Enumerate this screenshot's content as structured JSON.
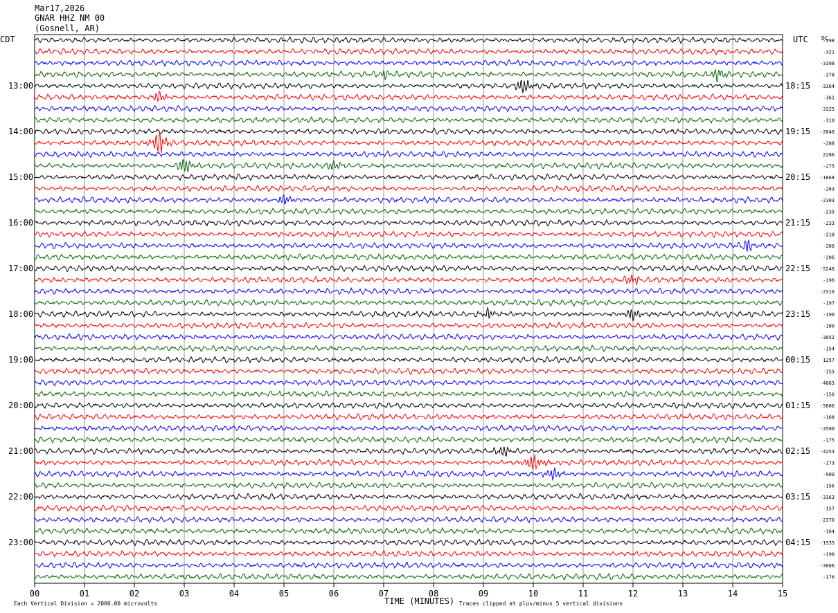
{
  "header": {
    "date": "Mar17,2026",
    "station": "GNAR HHZ NM 00",
    "location": "(Gosnell, AR)"
  },
  "left_axis_label": "CDT",
  "right_axis_label": "UTC",
  "dc_label": "DC",
  "footer": {
    "scale_note": "Each Vertical Division = 2000.00 microvolts",
    "x_title": "TIME (MINUTES)",
    "clip_note": "Traces clipped at plus/minus 5 vertical divisions"
  },
  "chart_data": {
    "type": "line",
    "subtype": "helicorder",
    "x_ticks": [
      "00",
      "01",
      "02",
      "03",
      "04",
      "05",
      "06",
      "07",
      "08",
      "09",
      "10",
      "11",
      "12",
      "13",
      "14",
      "15"
    ],
    "x_range_minutes": [
      0,
      15
    ],
    "traces_per_hour": 4,
    "trace_colors": [
      "#000000",
      "#ff0000",
      "#0000ff",
      "#006400"
    ],
    "left_hour_labels": [
      {
        "row": 4,
        "label": "13:00"
      },
      {
        "row": 8,
        "label": "14:00"
      },
      {
        "row": 12,
        "label": "15:00"
      },
      {
        "row": 16,
        "label": "16:00"
      },
      {
        "row": 20,
        "label": "17:00"
      },
      {
        "row": 24,
        "label": "18:00"
      },
      {
        "row": 28,
        "label": "19:00"
      },
      {
        "row": 32,
        "label": "20:00"
      },
      {
        "row": 36,
        "label": "21:00"
      },
      {
        "row": 40,
        "label": "22:00"
      },
      {
        "row": 44,
        "label": "23:00"
      }
    ],
    "right_hour_labels": [
      {
        "row": 4,
        "label": "18:15"
      },
      {
        "row": 8,
        "label": "19:15"
      },
      {
        "row": 12,
        "label": "20:15"
      },
      {
        "row": 16,
        "label": "21:15"
      },
      {
        "row": 20,
        "label": "22:15"
      },
      {
        "row": 24,
        "label": "23:15"
      },
      {
        "row": 28,
        "label": "00:15"
      },
      {
        "row": 32,
        "label": "01:15"
      },
      {
        "row": 36,
        "label": "02:15"
      },
      {
        "row": 40,
        "label": "03:15"
      },
      {
        "row": 44,
        "label": "04:15"
      }
    ],
    "dc_offsets": [
      "-398",
      "-321",
      "-3398",
      "-378",
      "-3364",
      "-361",
      "-3325",
      "-310",
      "-2840",
      "-288",
      "2286",
      "-275",
      "-1868",
      "-263",
      "-2303",
      "-235",
      "-233",
      "-218",
      "-206",
      "-206",
      "-5246",
      "-196",
      "-2310",
      "-197",
      "-190",
      "-180",
      "-3052",
      "-154",
      "1257",
      "-155",
      "-4863",
      "-156",
      "-5606",
      "-168",
      "-3500",
      "-175",
      "-4253",
      "-173",
      "-900",
      "-156",
      "-3163",
      "-157",
      "-2370",
      "-164",
      "-1935",
      "-190",
      "-3066",
      "-176"
    ],
    "events": [
      {
        "row": 3,
        "minute": 7.0,
        "strength": 0.6
      },
      {
        "row": 3,
        "minute": 13.7,
        "strength": 1.0
      },
      {
        "row": 4,
        "minute": 9.8,
        "strength": 1.3
      },
      {
        "row": 5,
        "minute": 2.5,
        "strength": 0.9
      },
      {
        "row": 9,
        "minute": 2.5,
        "strength": 2.0
      },
      {
        "row": 11,
        "minute": 3.0,
        "strength": 1.2
      },
      {
        "row": 11,
        "minute": 6.0,
        "strength": 0.7
      },
      {
        "row": 14,
        "minute": 5.0,
        "strength": 0.8
      },
      {
        "row": 18,
        "minute": 14.3,
        "strength": 1.0
      },
      {
        "row": 21,
        "minute": 12.0,
        "strength": 0.8
      },
      {
        "row": 24,
        "minute": 9.1,
        "strength": 0.8
      },
      {
        "row": 24,
        "minute": 12.0,
        "strength": 1.0
      },
      {
        "row": 36,
        "minute": 9.4,
        "strength": 0.9
      },
      {
        "row": 37,
        "minute": 10.0,
        "strength": 1.5
      },
      {
        "row": 38,
        "minute": 10.4,
        "strength": 1.0
      }
    ]
  }
}
